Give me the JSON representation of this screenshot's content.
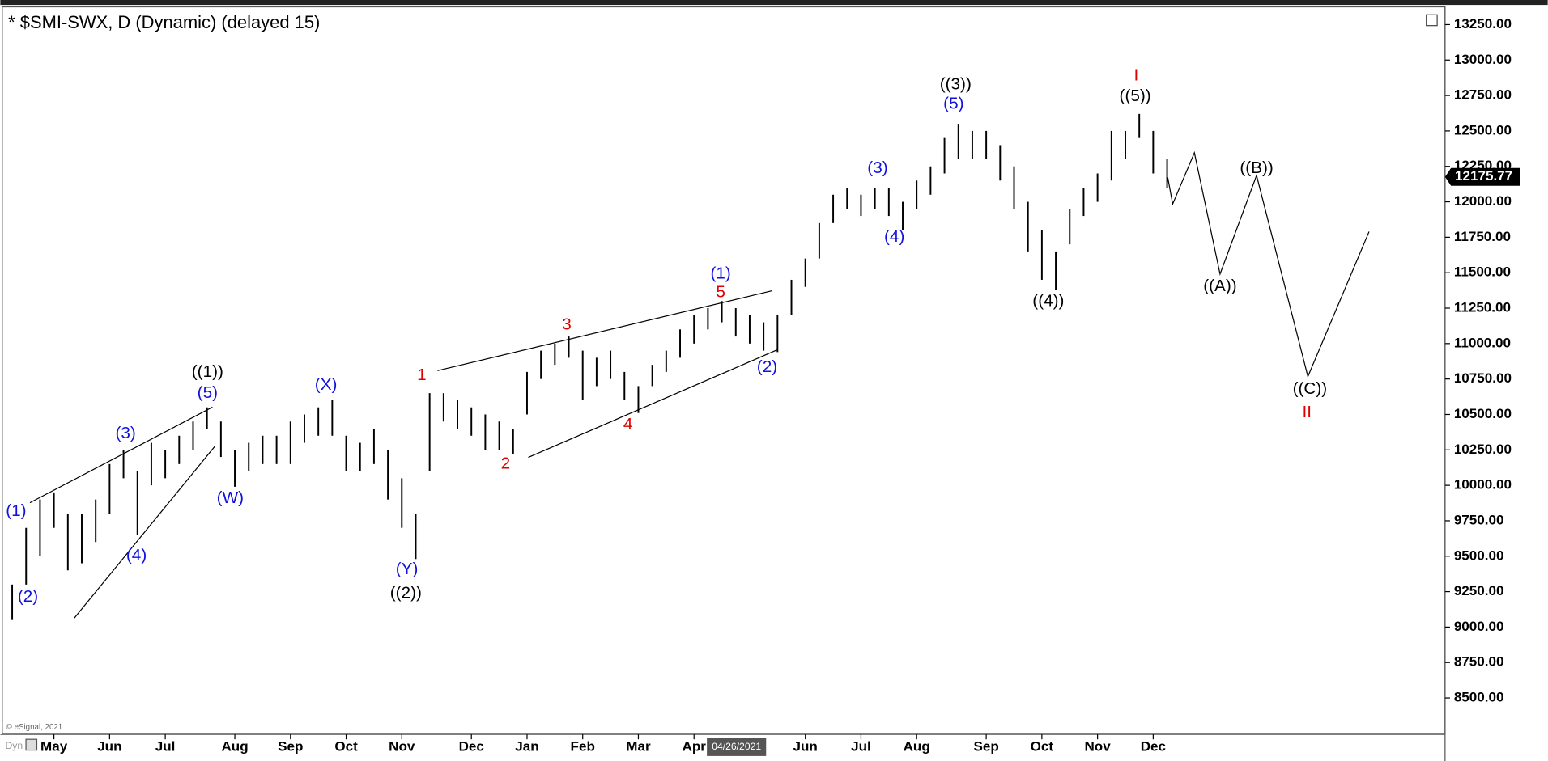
{
  "chart_data": {
    "type": "ohlc",
    "title": "* $SMI-SWX, D (Dynamic) (delayed 15)",
    "copyright": "© eSignal, 2021",
    "badge": "Dyn",
    "cursor_date": "04/26/2021",
    "last_price": 12175.77,
    "color": "#000000",
    "categories": [
      null,
      null,
      null,
      "May",
      null,
      null,
      null,
      "Jun",
      null,
      null,
      null,
      "Jul",
      null,
      null,
      null,
      null,
      "Aug",
      null,
      null,
      null,
      "Sep",
      null,
      null,
      null,
      "Oct",
      null,
      null,
      null,
      "Nov",
      null,
      null,
      null,
      null,
      "Dec",
      null,
      null,
      null,
      "Jan",
      null,
      null,
      null,
      "Feb",
      null,
      null,
      null,
      "Mar",
      null,
      null,
      null,
      "Apr",
      null,
      null,
      null,
      null,
      null,
      null,
      null,
      "Jun",
      null,
      null,
      null,
      "Jul",
      null,
      null,
      null,
      "Aug",
      null,
      null,
      null,
      null,
      "Sep",
      null,
      null,
      null,
      "Oct",
      null,
      null,
      null,
      "Nov",
      null,
      null,
      null,
      "Dec",
      null
    ],
    "high": [
      9300,
      9700,
      9900,
      9950,
      9800,
      9800,
      9900,
      10150,
      10250,
      10100,
      10300,
      10250,
      10350,
      10450,
      10550,
      10450,
      10250,
      10300,
      10350,
      10350,
      10450,
      10500,
      10550,
      10600,
      10350,
      10300,
      10400,
      10250,
      10050,
      9800,
      10650,
      10650,
      10600,
      10550,
      10500,
      10450,
      10400,
      10800,
      10950,
      11000,
      11050,
      10950,
      10900,
      10950,
      10800,
      10700,
      10850,
      10950,
      11100,
      11200,
      11250,
      11300,
      11250,
      11200,
      11150,
      11200,
      11450,
      11600,
      11850,
      12050,
      12100,
      12050,
      12100,
      12100,
      12000,
      12150,
      12250,
      12450,
      12550,
      12500,
      12500,
      12400,
      12250,
      12000,
      11800,
      11650,
      11950,
      12100,
      12200,
      12500,
      12500,
      12620,
      12500,
      12300
    ],
    "low": [
      9050,
      9300,
      9500,
      9700,
      9400,
      9450,
      9600,
      9800,
      10050,
      9650,
      10000,
      10050,
      10150,
      10250,
      10400,
      10200,
      9990,
      10100,
      10150,
      10150,
      10150,
      10300,
      10350,
      10350,
      10100,
      10100,
      10150,
      9900,
      9700,
      9480,
      10100,
      10450,
      10400,
      10350,
      10250,
      10250,
      10220,
      10500,
      10750,
      10850,
      10900,
      10600,
      10700,
      10750,
      10600,
      10510,
      10700,
      10800,
      10900,
      11000,
      11100,
      11150,
      11050,
      11000,
      10950,
      10940,
      11200,
      11400,
      11600,
      11850,
      11950,
      11900,
      11950,
      11900,
      11800,
      11950,
      12050,
      12200,
      12300,
      12300,
      12300,
      12150,
      11950,
      11650,
      11450,
      11380,
      11700,
      11900,
      12000,
      12150,
      12300,
      12450,
      12200,
      12100
    ],
    "ylim": [
      8250,
      13375
    ],
    "yticks": [
      {
        "value": 8500,
        "label": "8500.00"
      },
      {
        "value": 8750,
        "label": "8750.00"
      },
      {
        "value": 9000,
        "label": "9000.00"
      },
      {
        "value": 9250,
        "label": "9250.00"
      },
      {
        "value": 9500,
        "label": "9500.00"
      },
      {
        "value": 9750,
        "label": "9750.00"
      },
      {
        "value": 10000,
        "label": "10000.00"
      },
      {
        "value": 10250,
        "label": "10250.00"
      },
      {
        "value": 10500,
        "label": "10500.00"
      },
      {
        "value": 10750,
        "label": "10750.00"
      },
      {
        "value": 11000,
        "label": "11000.00"
      },
      {
        "value": 11250,
        "label": "11250.00"
      },
      {
        "value": 11500,
        "label": "11500.00"
      },
      {
        "value": 11750,
        "label": "11750.00"
      },
      {
        "value": 12000,
        "label": "12000.00"
      },
      {
        "value": 12250,
        "label": "12250.00"
      },
      {
        "value": 12500,
        "label": "12500.00"
      },
      {
        "value": 12750,
        "label": "12750.00"
      },
      {
        "value": 13000,
        "label": "13000.00"
      },
      {
        "value": 13250,
        "label": "13250.00"
      }
    ],
    "annotations": [
      {
        "text": "((1))",
        "color": "#000000"
      },
      {
        "text": "(5)",
        "color": "#1010e0"
      },
      {
        "text": "(1)",
        "color": "#1010e0"
      },
      {
        "text": "(2)",
        "color": "#1010e0"
      },
      {
        "text": "(3)",
        "color": "#1010e0"
      },
      {
        "text": "(4)",
        "color": "#1010e0"
      },
      {
        "text": "(W)",
        "color": "#1010e0"
      },
      {
        "text": "(X)",
        "color": "#1010e0"
      },
      {
        "text": "(Y)",
        "color": "#1010e0"
      },
      {
        "text": "((2))",
        "color": "#000000"
      },
      {
        "text": "1",
        "color": "#e00000"
      },
      {
        "text": "2",
        "color": "#e00000"
      },
      {
        "text": "3",
        "color": "#e00000"
      },
      {
        "text": "4",
        "color": "#e00000"
      },
      {
        "text": "5",
        "color": "#e00000"
      },
      {
        "text": "(1)",
        "color": "#1010e0"
      },
      {
        "text": "(2)",
        "color": "#1010e0"
      },
      {
        "text": "(3)",
        "color": "#1010e0"
      },
      {
        "text": "(4)",
        "color": "#1010e0"
      },
      {
        "text": "((3))",
        "color": "#000000"
      },
      {
        "text": "(5)",
        "color": "#1010e0"
      },
      {
        "text": "((4))",
        "color": "#000000"
      },
      {
        "text": "I",
        "color": "#e00000"
      },
      {
        "text": "((5))",
        "color": "#000000"
      },
      {
        "text": "((A))",
        "color": "#000000"
      },
      {
        "text": "((B))",
        "color": "#000000"
      },
      {
        "text": "((C))",
        "color": "#000000"
      },
      {
        "text": "II",
        "color": "#e00000"
      }
    ]
  }
}
